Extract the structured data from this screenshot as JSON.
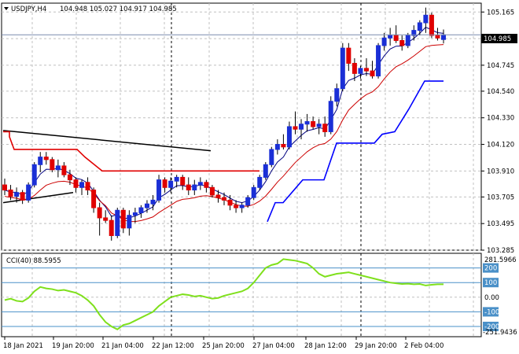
{
  "chart_data": [
    {
      "type": "candlestick",
      "symbol_timeframe": "USDJPY,H4",
      "ohlc_header": "104.948 105.027 104.917 104.985",
      "last_price_label": "104.985",
      "last_price": 104.985,
      "ylim": [
        103.285,
        105.235
      ],
      "y_tick_labels": [
        "105.165",
        "104.955",
        "104.745",
        "104.540",
        "104.330",
        "104.120",
        "103.910",
        "103.705",
        "103.495",
        "103.285"
      ],
      "x_tick_labels": [
        "18 Jan 2021",
        "19 Jan 20:00",
        "21 Jan 04:00",
        "22 Jan 12:00",
        "25 Jan 20:00",
        "27 Jan 04:00",
        "28 Jan 12:00",
        "29 Jan 20:00",
        "2 Feb 04:00"
      ],
      "candles": [
        [
          103.8,
          103.85,
          103.72,
          103.76
        ],
        [
          103.76,
          103.8,
          103.68,
          103.71
        ],
        [
          103.71,
          103.78,
          103.66,
          103.74
        ],
        [
          103.74,
          103.76,
          103.65,
          103.68
        ],
        [
          103.68,
          103.82,
          103.66,
          103.8
        ],
        [
          103.8,
          103.98,
          103.78,
          103.96
        ],
        [
          103.96,
          104.06,
          103.9,
          104.02
        ],
        [
          104.02,
          104.06,
          103.96,
          104.0
        ],
        [
          104.0,
          104.02,
          103.9,
          103.92
        ],
        [
          103.92,
          104.0,
          103.86,
          103.95
        ],
        [
          103.95,
          103.98,
          103.86,
          103.88
        ],
        [
          103.88,
          103.92,
          103.8,
          103.84
        ],
        [
          103.84,
          103.86,
          103.74,
          103.78
        ],
        [
          103.78,
          103.84,
          103.72,
          103.82
        ],
        [
          103.82,
          103.86,
          103.72,
          103.76
        ],
        [
          103.76,
          103.78,
          103.58,
          103.62
        ],
        [
          103.62,
          103.66,
          103.4,
          103.54
        ],
        [
          103.54,
          103.6,
          103.5,
          103.52
        ],
        [
          103.52,
          103.56,
          103.36,
          103.4
        ],
        [
          103.4,
          103.62,
          103.38,
          103.6
        ],
        [
          103.6,
          103.62,
          103.42,
          103.46
        ],
        [
          103.46,
          103.6,
          103.4,
          103.56
        ],
        [
          103.56,
          103.62,
          103.5,
          103.58
        ],
        [
          103.58,
          103.64,
          103.54,
          103.62
        ],
        [
          103.62,
          103.68,
          103.58,
          103.65
        ],
        [
          103.65,
          103.72,
          103.6,
          103.68
        ],
        [
          103.68,
          103.88,
          103.66,
          103.84
        ],
        [
          103.84,
          103.86,
          103.74,
          103.78
        ],
        [
          103.78,
          103.86,
          103.74,
          103.83
        ],
        [
          103.83,
          103.88,
          103.78,
          103.86
        ],
        [
          103.86,
          103.88,
          103.76,
          103.8
        ],
        [
          103.8,
          103.86,
          103.72,
          103.76
        ],
        [
          103.76,
          103.84,
          103.72,
          103.8
        ],
        [
          103.8,
          103.86,
          103.76,
          103.82
        ],
        [
          103.82,
          103.84,
          103.74,
          103.78
        ],
        [
          103.78,
          103.8,
          103.7,
          103.72
        ],
        [
          103.72,
          103.76,
          103.66,
          103.7
        ],
        [
          103.7,
          103.74,
          103.64,
          103.68
        ],
        [
          103.68,
          103.72,
          103.6,
          103.64
        ],
        [
          103.64,
          103.68,
          103.58,
          103.62
        ],
        [
          103.62,
          103.66,
          103.58,
          103.64
        ],
        [
          103.64,
          103.72,
          103.62,
          103.7
        ],
        [
          103.7,
          103.8,
          103.68,
          103.78
        ],
        [
          103.78,
          103.88,
          103.76,
          103.86
        ],
        [
          103.86,
          103.98,
          103.84,
          103.96
        ],
        [
          103.96,
          104.1,
          103.94,
          104.08
        ],
        [
          104.08,
          104.16,
          104.04,
          104.12
        ],
        [
          104.12,
          104.2,
          104.08,
          104.1
        ],
        [
          104.1,
          104.3,
          104.08,
          104.26
        ],
        [
          104.26,
          104.38,
          104.2,
          104.24
        ],
        [
          104.24,
          104.32,
          104.16,
          104.28
        ],
        [
          104.28,
          104.36,
          104.22,
          104.3
        ],
        [
          104.3,
          104.34,
          104.24,
          104.26
        ],
        [
          104.26,
          104.32,
          104.2,
          104.28
        ],
        [
          104.28,
          104.34,
          104.18,
          104.22
        ],
        [
          104.22,
          104.5,
          104.2,
          104.46
        ],
        [
          104.46,
          104.6,
          104.42,
          104.56
        ],
        [
          104.56,
          104.92,
          104.54,
          104.88
        ],
        [
          104.88,
          104.92,
          104.7,
          104.76
        ],
        [
          104.76,
          104.8,
          104.62,
          104.68
        ],
        [
          104.68,
          104.74,
          104.64,
          104.72
        ],
        [
          104.72,
          104.8,
          104.66,
          104.7
        ],
        [
          104.7,
          104.78,
          104.64,
          104.66
        ],
        [
          104.66,
          104.92,
          104.64,
          104.9
        ],
        [
          104.9,
          105.0,
          104.86,
          104.96
        ],
        [
          104.96,
          105.04,
          104.9,
          104.98
        ],
        [
          104.98,
          105.06,
          104.92,
          104.94
        ],
        [
          104.94,
          104.98,
          104.86,
          104.9
        ],
        [
          104.9,
          105.0,
          104.88,
          104.98
        ],
        [
          104.98,
          105.06,
          104.94,
          105.02
        ],
        [
          105.02,
          105.1,
          104.98,
          105.08
        ],
        [
          105.08,
          105.2,
          105.0,
          105.14
        ],
        [
          105.14,
          105.16,
          104.96,
          104.98
        ],
        [
          104.98,
          105.04,
          104.94,
          104.96
        ],
        [
          104.948,
          105.027,
          104.917,
          104.985
        ]
      ],
      "cci_panel": {
        "label": "CCI(40) 88.5955",
        "ylim": [
          -270,
          300
        ],
        "max_label": "281.5966",
        "min_label": "-251.9436",
        "level_labels": [
          "200",
          "100",
          "0.00",
          "-100",
          "-200"
        ]
      }
    }
  ],
  "colors": {
    "bull": "#1a2fd6",
    "bear": "#e00000",
    "ma_dark": "#000080",
    "ma_red": "#cc0000",
    "step_blue": "#0000ff",
    "cci_line": "#7fe01c",
    "grid": "#c0c0c0",
    "level": "#4a90c8",
    "price_line": "#7a8cae"
  }
}
